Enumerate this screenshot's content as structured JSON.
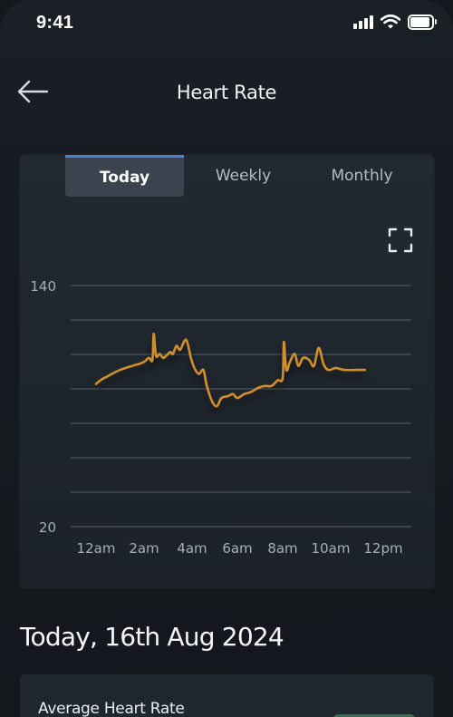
{
  "status_bar": {
    "time": "9:41"
  },
  "header": {
    "title": "Heart Rate"
  },
  "tabs": [
    {
      "label": "Today",
      "active": true
    },
    {
      "label": "Weekly",
      "active": false
    },
    {
      "label": "Monthly",
      "active": false
    }
  ],
  "chart_data": {
    "type": "line",
    "series": [
      {
        "color": "#d18f29",
        "points": [
          [
            0.0,
            91
          ],
          [
            0.2,
            93
          ],
          [
            0.5,
            95
          ],
          [
            1.0,
            98
          ],
          [
            1.5,
            100
          ],
          [
            1.8,
            101
          ],
          [
            2.0,
            102
          ],
          [
            2.2,
            104
          ],
          [
            2.35,
            103
          ],
          [
            2.4,
            116
          ],
          [
            2.5,
            105
          ],
          [
            2.65,
            106
          ],
          [
            2.8,
            104
          ],
          [
            3.0,
            106
          ],
          [
            3.1,
            107
          ],
          [
            3.2,
            106
          ],
          [
            3.35,
            110
          ],
          [
            3.5,
            108
          ],
          [
            3.75,
            113
          ],
          [
            3.95,
            104
          ],
          [
            4.1,
            99
          ],
          [
            4.3,
            96
          ],
          [
            4.5,
            98
          ],
          [
            4.65,
            90
          ],
          [
            4.9,
            82
          ],
          [
            5.1,
            80
          ],
          [
            5.3,
            84
          ],
          [
            5.6,
            85
          ],
          [
            5.8,
            86
          ],
          [
            6.0,
            84
          ],
          [
            6.3,
            86
          ],
          [
            6.6,
            87
          ],
          [
            6.9,
            89
          ],
          [
            7.2,
            90
          ],
          [
            7.5,
            90
          ],
          [
            7.7,
            92
          ],
          [
            7.8,
            93
          ],
          [
            8.0,
            94
          ],
          [
            8.05,
            112
          ],
          [
            8.15,
            98
          ],
          [
            8.3,
            102
          ],
          [
            8.5,
            106
          ],
          [
            8.65,
            100
          ],
          [
            8.85,
            104
          ],
          [
            9.1,
            103
          ],
          [
            9.3,
            100
          ],
          [
            9.5,
            109
          ],
          [
            9.7,
            101
          ],
          [
            9.9,
            98
          ],
          [
            10.2,
            99
          ],
          [
            10.5,
            98
          ],
          [
            11.0,
            98
          ],
          [
            11.3,
            98
          ]
        ]
      }
    ],
    "x_ticks": [
      "12am",
      "2am",
      "4am",
      "6am",
      "8am",
      "10am",
      "12pm"
    ],
    "y_ticks": [
      "140",
      "20"
    ],
    "xlim": [
      0,
      12
    ],
    "ylim": [
      20,
      140
    ],
    "grid": true
  },
  "date_heading": "Today, 16th Aug 2024",
  "stats": {
    "average_label": "Average Heart Rate"
  }
}
